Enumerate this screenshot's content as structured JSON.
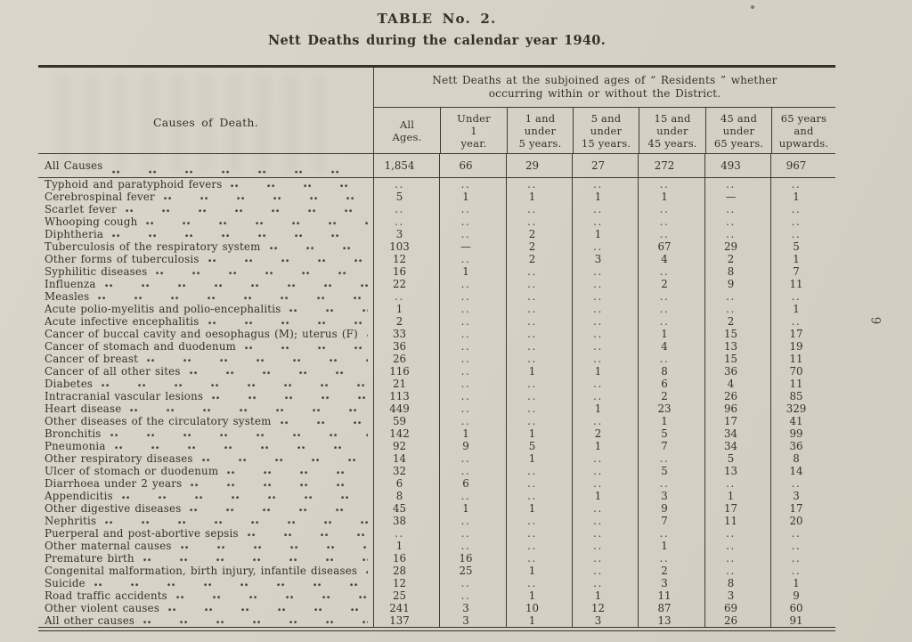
{
  "page": {
    "table_number": "TABLE No. 2.",
    "title": "Nett Deaths during the calendar year 1940.",
    "page_number": "9"
  },
  "table": {
    "causes_header": "Causes of Death.",
    "span_header": {
      "line1": "Nett Deaths at the subjoined ages of “ Residents ” whether",
      "line2": "occurring within or without the District."
    },
    "columns": [
      "All\nAges.",
      "Under\n1\nyear.",
      "1 and\nunder\n5 years.",
      "5 and\nunder\n15 years.",
      "15 and\nunder\n45 years.",
      "45 and\nunder\n65 years.",
      "65 years\nand\nupwards."
    ],
    "empty_marker": "..",
    "zero_marker": "—",
    "totals": {
      "label": "All Causes",
      "values": [
        "1,854",
        "66",
        "29",
        "27",
        "272",
        "493",
        "967"
      ]
    },
    "rows": [
      {
        "label": "Typhoid and paratyphoid fevers",
        "values": [
          "..",
          "..",
          "..",
          "..",
          "..",
          "..",
          ".."
        ]
      },
      {
        "label": "Cerebrospinal fever",
        "values": [
          "5",
          "1",
          "1",
          "1",
          "1",
          "—",
          "1"
        ]
      },
      {
        "label": "Scarlet fever",
        "values": [
          "..",
          "..",
          "..",
          "..",
          "..",
          "..",
          ".."
        ]
      },
      {
        "label": "Whooping cough",
        "values": [
          "..",
          "..",
          "..",
          "..",
          "..",
          "..",
          ".."
        ]
      },
      {
        "label": "Diphtheria",
        "values": [
          "3",
          "..",
          "2",
          "1",
          "..",
          "..",
          ".."
        ]
      },
      {
        "label": "Tuberculosis of the respiratory system",
        "values": [
          "103",
          "—",
          "2",
          "..",
          "67",
          "29",
          "5"
        ]
      },
      {
        "label": "Other forms of tuberculosis",
        "values": [
          "12",
          "..",
          "2",
          "3",
          "4",
          "2",
          "1"
        ]
      },
      {
        "label": "Syphilitic diseases",
        "values": [
          "16",
          "1",
          "..",
          "..",
          "..",
          "8",
          "7"
        ]
      },
      {
        "label": "Influenza",
        "values": [
          "22",
          "..",
          "..",
          "..",
          "2",
          "9",
          "11"
        ]
      },
      {
        "label": "Measles",
        "values": [
          "..",
          "..",
          "..",
          "..",
          "..",
          "..",
          ".."
        ]
      },
      {
        "label": "Acute polio-myelitis and polio-encephalitis",
        "values": [
          "1",
          "..",
          "..",
          "..",
          "..",
          "..",
          "1"
        ]
      },
      {
        "label": "Acute infective encephalitis",
        "values": [
          "2",
          "..",
          "..",
          "..",
          "..",
          "2",
          ".."
        ]
      },
      {
        "label": "Cancer of buccal cavity and oesophagus (M); uterus (F)",
        "values": [
          "33",
          "..",
          "..",
          "..",
          "1",
          "15",
          "17"
        ]
      },
      {
        "label": "Cancer of stomach and duodenum",
        "values": [
          "36",
          "..",
          "..",
          "..",
          "4",
          "13",
          "19"
        ]
      },
      {
        "label": "Cancer of breast",
        "values": [
          "26",
          "..",
          "..",
          "..",
          "..",
          "15",
          "11"
        ]
      },
      {
        "label": "Cancer of all other sites",
        "values": [
          "116",
          "..",
          "1",
          "1",
          "8",
          "36",
          "70"
        ]
      },
      {
        "label": "Diabetes",
        "values": [
          "21",
          "..",
          "..",
          "..",
          "6",
          "4",
          "11"
        ]
      },
      {
        "label": "Intracranial vascular lesions",
        "values": [
          "113",
          "..",
          "..",
          "..",
          "2",
          "26",
          "85"
        ]
      },
      {
        "label": "Heart disease",
        "values": [
          "449",
          "..",
          "..",
          "1",
          "23",
          "96",
          "329"
        ]
      },
      {
        "label": "Other diseases of the circulatory system",
        "values": [
          "59",
          "..",
          "..",
          "..",
          "1",
          "17",
          "41"
        ]
      },
      {
        "label": "Bronchitis",
        "values": [
          "142",
          "1",
          "1",
          "2",
          "5",
          "34",
          "99"
        ]
      },
      {
        "label": "Pneumonia",
        "values": [
          "92",
          "9",
          "5",
          "1",
          "7",
          "34",
          "36"
        ]
      },
      {
        "label": "Other respiratory diseases",
        "values": [
          "14",
          "..",
          "1",
          "..",
          "..",
          "5",
          "8"
        ]
      },
      {
        "label": "Ulcer of stomach or duodenum",
        "values": [
          "32",
          "..",
          "..",
          "..",
          "5",
          "13",
          "14"
        ]
      },
      {
        "label": "Diarrhoea under 2 years",
        "values": [
          "6",
          "6",
          "..",
          "..",
          "..",
          "..",
          ".."
        ]
      },
      {
        "label": "Appendicitis",
        "values": [
          "8",
          "..",
          "..",
          "1",
          "3",
          "1",
          "3"
        ]
      },
      {
        "label": "Other digestive diseases",
        "values": [
          "45",
          "1",
          "1",
          "..",
          "9",
          "17",
          "17"
        ]
      },
      {
        "label": "Nephritis",
        "values": [
          "38",
          "..",
          "..",
          "..",
          "7",
          "11",
          "20"
        ]
      },
      {
        "label": "Puerperal and post-abortive sepsis",
        "values": [
          "..",
          "..",
          "..",
          "..",
          "..",
          "..",
          ".."
        ]
      },
      {
        "label": "Other maternal causes",
        "values": [
          "1",
          "..",
          "..",
          "..",
          "1",
          "..",
          ".."
        ]
      },
      {
        "label": "Premature birth",
        "values": [
          "16",
          "16",
          "..",
          "..",
          "..",
          "..",
          ".."
        ]
      },
      {
        "label": "Congenital malformation, birth injury, infantile diseases",
        "values": [
          "28",
          "25",
          "1",
          "..",
          "2",
          "..",
          ".."
        ]
      },
      {
        "label": "Suicide",
        "values": [
          "12",
          "..",
          "..",
          "..",
          "3",
          "8",
          "1"
        ]
      },
      {
        "label": "Road traffic accidents",
        "values": [
          "25",
          "..",
          "1",
          "1",
          "11",
          "3",
          "9"
        ]
      },
      {
        "label": "Other violent causes",
        "values": [
          "241",
          "3",
          "10",
          "12",
          "87",
          "69",
          "60"
        ]
      },
      {
        "label": "All other causes",
        "values": [
          "137",
          "3",
          "1",
          "3",
          "13",
          "26",
          "91"
        ]
      }
    ]
  }
}
